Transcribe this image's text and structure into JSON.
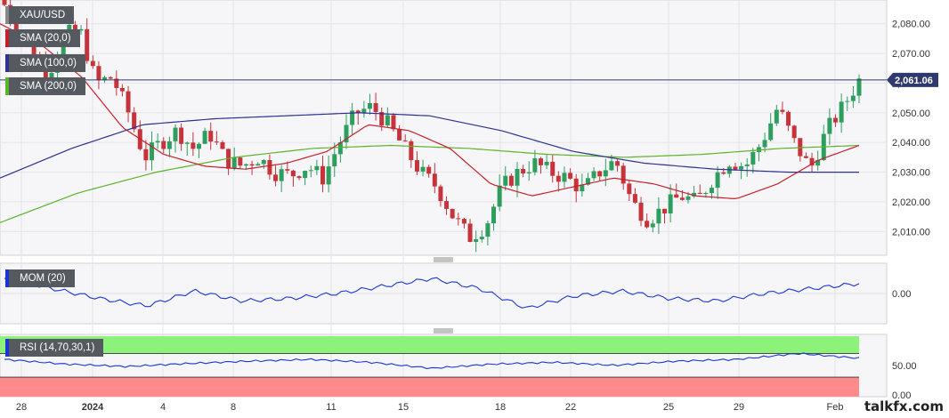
{
  "legend": {
    "symbol": "XAU/USD",
    "sma20": "SMA (20,0)",
    "sma100": "SMA (100,0)",
    "sma200": "SMA (200,0)",
    "mom": "MOM (20)",
    "rsi": "RSI (14,70,30,1)"
  },
  "brand": "talkfx.com",
  "colors": {
    "up": "#2e9e5e",
    "down": "#c6333a",
    "sma20": "#c8202a",
    "sma100": "#2e3192",
    "sma200": "#5ab42a",
    "indicator_line": "#1a34d6",
    "rsi_overbought_band": "#8cf27a",
    "rsi_oversold_band": "#ff8a8a",
    "last_price_tag": "#2e3a6e"
  },
  "chart_data": {
    "type": "candlestick",
    "symbol": "XAU/USD",
    "last_price": "2,061.06",
    "price_axis": {
      "ticks": [
        "2,080.00",
        "2,070.00",
        "2,060.00",
        "2,050.00",
        "2,040.00",
        "2,030.00",
        "2,020.00",
        "2,010.00"
      ],
      "range": [
        2002,
        2088
      ]
    },
    "x_labels": [
      "28",
      "2024",
      "4",
      "8",
      "11",
      "15",
      "18",
      "22",
      "25",
      "29",
      "Feb"
    ],
    "candles_keypoints": [
      2090,
      2080,
      2072,
      2062,
      2076,
      2078,
      2060,
      2062,
      2050,
      2035,
      2040,
      2044,
      2038,
      2043,
      2034,
      2032,
      2035,
      2030,
      2029,
      2032,
      2028,
      2040,
      2050,
      2052,
      2046,
      2038,
      2030,
      2025,
      2015,
      2008,
      2012,
      2025,
      2030,
      2033,
      2030,
      2028,
      2024,
      2030,
      2034,
      2020,
      2014,
      2018,
      2022,
      2020,
      2028,
      2034,
      2032,
      2040,
      2052,
      2040,
      2031,
      2044,
      2052,
      2061
    ],
    "sma20_keypoints": [
      2080,
      2073,
      2062,
      2045,
      2036,
      2032,
      2031,
      2033,
      2037,
      2046,
      2044,
      2038,
      2026,
      2022,
      2025,
      2028,
      2026,
      2022,
      2021,
      2026,
      2034,
      2039
    ],
    "sma100_keypoints": [
      2028,
      2038,
      2046,
      2048,
      2049,
      2050,
      2049,
      2044,
      2037,
      2033,
      2031,
      2030,
      2030
    ],
    "sma200_keypoints": [
      2013,
      2023,
      2030,
      2035,
      2038,
      2039,
      2038,
      2036,
      2035,
      2036,
      2038,
      2039
    ],
    "mom": {
      "axis_ticks": [
        "0.00"
      ],
      "keypoints": [
        0.6,
        0.2,
        -0.2,
        -0.5,
        0.1,
        -0.3,
        -0.2,
        0.0,
        0.3,
        0.6,
        0.2,
        -0.6,
        -0.1,
        0.1,
        -0.2,
        -0.3,
        0.0,
        0.2,
        0.4
      ]
    },
    "rsi": {
      "axis_ticks": [
        "50.00",
        "0.00"
      ],
      "overbought": 70,
      "oversold": 30,
      "keypoints": [
        60,
        52,
        48,
        53,
        57,
        60,
        55,
        45,
        52,
        55,
        50,
        57,
        60,
        70,
        62
      ]
    }
  }
}
